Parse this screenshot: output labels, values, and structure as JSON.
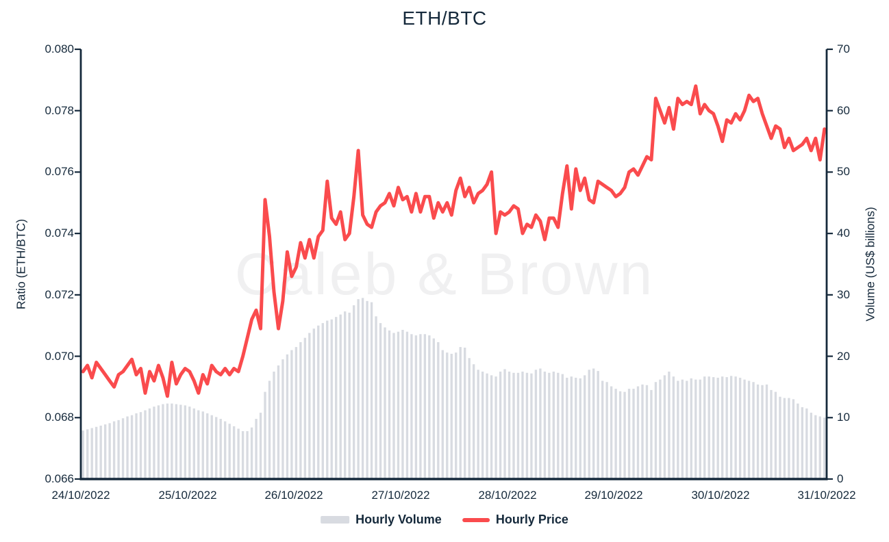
{
  "title": "ETH/BTC",
  "watermark": "Caleb & Brown",
  "colors": {
    "price_line": "#FA4B4D",
    "volume_bar": "#D8DBE1",
    "axis": "#15293B",
    "text": "#15293B",
    "watermark": "#F0F0F1",
    "background": "#FFFFFF"
  },
  "axes": {
    "left": {
      "label": "Ratio (ETH/BTC)",
      "ticks": [
        "0.080",
        "0.078",
        "0.076",
        "0.074",
        "0.072",
        "0.070",
        "0.068",
        "0.066"
      ]
    },
    "right": {
      "label": "Volume (US$ billions)",
      "ticks": [
        "70",
        "60",
        "50",
        "40",
        "30",
        "20",
        "10",
        "0"
      ]
    },
    "x": {
      "labels": [
        "24/10/2022",
        "25/10/2022",
        "26/10/2022",
        "27/10/2022",
        "28/10/2022",
        "29/10/2022",
        "30/10/2022",
        "31/10/2022"
      ]
    }
  },
  "legend": {
    "items": [
      {
        "label": "Hourly Volume",
        "swatch": "bar"
      },
      {
        "label": "Hourly Price",
        "swatch": "line"
      }
    ]
  },
  "chart_data": {
    "type": "line+bar",
    "title": "ETH/BTC",
    "x_interval": "1 hour",
    "x_start": "24/10/2022 00:00",
    "x_end": "31/10/2022 00:00",
    "x_tick_labels": [
      "24/10/2022",
      "25/10/2022",
      "26/10/2022",
      "27/10/2022",
      "28/10/2022",
      "29/10/2022",
      "30/10/2022",
      "31/10/2022"
    ],
    "left_axis": {
      "label": "Ratio (ETH/BTC)",
      "lim": [
        0.066,
        0.08
      ],
      "ticks": [
        0.066,
        0.068,
        0.07,
        0.072,
        0.074,
        0.076,
        0.078,
        0.08
      ]
    },
    "right_axis": {
      "label": "Volume (US$ billions)",
      "lim": [
        0,
        70
      ],
      "ticks": [
        0,
        10,
        20,
        30,
        40,
        50,
        60,
        70
      ]
    },
    "grid": false,
    "legend_position": "bottom-center",
    "watermark": "Caleb & Brown",
    "series": [
      {
        "name": "Hourly Volume",
        "type": "bar",
        "axis": "right",
        "color": "#D8DBE1",
        "values": [
          7.9,
          8.1,
          8.3,
          8.5,
          8.7,
          8.9,
          9.1,
          9.4,
          9.6,
          9.9,
          10.2,
          10.4,
          10.7,
          10.9,
          11.2,
          11.5,
          11.8,
          12.0,
          12.2,
          12.3,
          12.3,
          12.2,
          12.1,
          12.0,
          11.8,
          11.5,
          11.2,
          11.0,
          10.7,
          10.4,
          10.1,
          9.8,
          9.4,
          9.0,
          8.6,
          8.2,
          7.8,
          7.8,
          8.4,
          9.8,
          10.8,
          14.2,
          16.0,
          17.5,
          18.5,
          19.5,
          20.3,
          21.0,
          21.5,
          22.3,
          23.0,
          23.8,
          24.5,
          25.0,
          25.4,
          25.8,
          26.0,
          26.4,
          26.8,
          27.3,
          27.1,
          28.3,
          29.3,
          29.5,
          29.0,
          28.8,
          26.5,
          25.4,
          24.7,
          24.2,
          23.8,
          24.0,
          24.3,
          24.0,
          23.6,
          23.4,
          23.6,
          23.6,
          23.4,
          22.9,
          22.3,
          21.0,
          20.6,
          20.4,
          20.6,
          21.5,
          21.4,
          19.7,
          18.7,
          17.8,
          17.5,
          17.2,
          16.9,
          16.7,
          17.5,
          17.9,
          17.5,
          17.3,
          17.3,
          17.5,
          17.3,
          17.2,
          17.8,
          18.0,
          17.5,
          17.3,
          17.5,
          17.3,
          17.1,
          16.5,
          16.7,
          16.5,
          16.4,
          16.9,
          17.8,
          18.0,
          17.6,
          16.0,
          15.8,
          15.1,
          14.7,
          14.3,
          14.2,
          14.7,
          14.7,
          15.1,
          15.4,
          15.3,
          14.5,
          15.8,
          16.2,
          16.9,
          17.5,
          16.7,
          16.0,
          16.2,
          16.0,
          16.4,
          16.2,
          16.2,
          16.7,
          16.7,
          16.6,
          16.5,
          16.7,
          16.6,
          16.8,
          16.7,
          16.5,
          16.2,
          16.0,
          15.8,
          15.4,
          15.3,
          15.4,
          14.5,
          14.2,
          13.4,
          13.2,
          13.2,
          13.0,
          12.3,
          11.7,
          11.5,
          10.8,
          10.4,
          10.2,
          10.0
        ]
      },
      {
        "name": "Hourly Price",
        "type": "line",
        "axis": "left",
        "color": "#FA4B4D",
        "values": [
          0.0695,
          0.0697,
          0.0693,
          0.0698,
          0.0696,
          0.0694,
          0.0692,
          0.069,
          0.0694,
          0.0695,
          0.0697,
          0.0699,
          0.0694,
          0.0696,
          0.0688,
          0.0695,
          0.0692,
          0.0697,
          0.0693,
          0.0687,
          0.0698,
          0.0691,
          0.0694,
          0.0696,
          0.0695,
          0.0692,
          0.0688,
          0.0694,
          0.0691,
          0.0697,
          0.0695,
          0.0694,
          0.0696,
          0.0694,
          0.0696,
          0.0695,
          0.07,
          0.0706,
          0.0712,
          0.0715,
          0.0709,
          0.0751,
          0.0739,
          0.0721,
          0.0709,
          0.0718,
          0.0734,
          0.0726,
          0.0729,
          0.0737,
          0.0732,
          0.0738,
          0.0732,
          0.0739,
          0.0741,
          0.0757,
          0.0745,
          0.0743,
          0.0747,
          0.0738,
          0.074,
          0.0752,
          0.0767,
          0.0746,
          0.0743,
          0.0742,
          0.0747,
          0.0749,
          0.075,
          0.0753,
          0.0749,
          0.0755,
          0.0751,
          0.0752,
          0.0747,
          0.0753,
          0.0747,
          0.0752,
          0.0752,
          0.0745,
          0.075,
          0.0747,
          0.075,
          0.0746,
          0.0754,
          0.0758,
          0.0752,
          0.0755,
          0.075,
          0.0753,
          0.0754,
          0.0756,
          0.076,
          0.074,
          0.0747,
          0.0746,
          0.0747,
          0.0749,
          0.0748,
          0.074,
          0.0743,
          0.0742,
          0.0746,
          0.0744,
          0.0738,
          0.0745,
          0.0745,
          0.0742,
          0.0753,
          0.0762,
          0.0748,
          0.0761,
          0.0754,
          0.0758,
          0.0751,
          0.075,
          0.0757,
          0.0756,
          0.0755,
          0.0754,
          0.0752,
          0.0753,
          0.0755,
          0.076,
          0.0761,
          0.0759,
          0.0762,
          0.0765,
          0.0764,
          0.0784,
          0.078,
          0.0776,
          0.0781,
          0.0774,
          0.0784,
          0.0782,
          0.0783,
          0.0782,
          0.0788,
          0.0779,
          0.0782,
          0.078,
          0.0779,
          0.0775,
          0.077,
          0.0777,
          0.0776,
          0.0779,
          0.0777,
          0.078,
          0.0785,
          0.0783,
          0.0784,
          0.0779,
          0.0775,
          0.0771,
          0.0775,
          0.0774,
          0.0768,
          0.0771,
          0.0767,
          0.0768,
          0.0769,
          0.0771,
          0.0767,
          0.0771,
          0.0764,
          0.0774
        ]
      }
    ]
  }
}
